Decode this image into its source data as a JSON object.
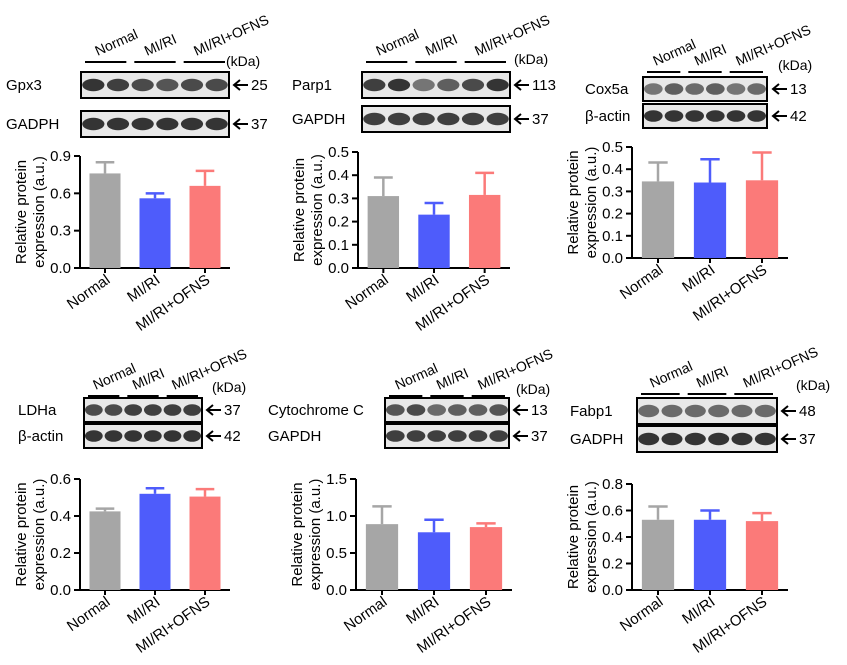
{
  "groups": [
    "Normal",
    "MI/RI",
    "MI/RI+OFNS"
  ],
  "kda_label": "(kDa)",
  "ylabel_line1": "Relative protein",
  "ylabel_line2": "expression (a.u.)",
  "colors": {
    "Normal": "#a6a6a6",
    "MI/RI": "#4e5cfb",
    "MI/RI+OFNS": "#fb7a79"
  },
  "panels": [
    {
      "id": "gpx3",
      "blots": [
        {
          "label": "Gpx3",
          "kda": "25",
          "band_intensity": [
            0.85,
            0.8,
            0.75,
            0.7,
            0.75,
            0.75
          ]
        },
        {
          "label": "GADPH",
          "kda": "37",
          "band_intensity": [
            0.85,
            0.85,
            0.85,
            0.85,
            0.85,
            0.85
          ]
        }
      ],
      "chart_data": {
        "type": "bar",
        "categories": [
          "Normal",
          "MI/RI",
          "MI/RI+OFNS"
        ],
        "values": [
          0.76,
          0.56,
          0.66
        ],
        "errors": [
          0.09,
          0.04,
          0.12
        ],
        "ylim": [
          0,
          0.9
        ],
        "yticks": [
          0.0,
          0.3,
          0.6,
          0.9
        ],
        "tick_labels": [
          "0.0",
          "0.3",
          "0.6",
          "0.9"
        ],
        "ylabel": "Relative protein expression (a.u.)"
      }
    },
    {
      "id": "parp1",
      "blots": [
        {
          "label": "Parp1",
          "kda": "113",
          "band_intensity": [
            0.8,
            0.85,
            0.55,
            0.65,
            0.75,
            0.85
          ]
        },
        {
          "label": "GAPDH",
          "kda": "37",
          "band_intensity": [
            0.8,
            0.8,
            0.8,
            0.8,
            0.8,
            0.8
          ]
        }
      ],
      "chart_data": {
        "type": "bar",
        "categories": [
          "Normal",
          "MI/RI",
          "MI/RI+OFNS"
        ],
        "values": [
          0.31,
          0.23,
          0.315
        ],
        "errors": [
          0.08,
          0.05,
          0.095
        ],
        "ylim": [
          0,
          0.5
        ],
        "yticks": [
          0.0,
          0.1,
          0.2,
          0.3,
          0.4,
          0.5
        ],
        "tick_labels": [
          "0.0",
          "0.1",
          "0.2",
          "0.3",
          "0.4",
          "0.5"
        ],
        "ylabel": "Relative protein expression (a.u.)"
      }
    },
    {
      "id": "cox5a",
      "blots": [
        {
          "label": "Cox5a",
          "kda": "13",
          "band_intensity": [
            0.55,
            0.65,
            0.6,
            0.65,
            0.55,
            0.6
          ]
        },
        {
          "label": "β-actin",
          "kda": "42",
          "band_intensity": [
            0.85,
            0.85,
            0.85,
            0.85,
            0.85,
            0.85
          ]
        }
      ],
      "chart_data": {
        "type": "bar",
        "categories": [
          "Normal",
          "MI/RI",
          "MI/RI+OFNS"
        ],
        "values": [
          0.345,
          0.34,
          0.35
        ],
        "errors": [
          0.085,
          0.105,
          0.125
        ],
        "ylim": [
          0,
          0.5
        ],
        "yticks": [
          0.0,
          0.1,
          0.2,
          0.3,
          0.4,
          0.5
        ],
        "tick_labels": [
          "0.0",
          "0.1",
          "0.2",
          "0.3",
          "0.4",
          "0.5"
        ],
        "ylabel": "Relative protein expression (a.u.)"
      }
    },
    {
      "id": "ldha",
      "blots": [
        {
          "label": "LDHa",
          "kda": "37",
          "band_intensity": [
            0.75,
            0.75,
            0.8,
            0.8,
            0.8,
            0.8
          ]
        },
        {
          "label": "β-actin",
          "kda": "42",
          "band_intensity": [
            0.85,
            0.85,
            0.85,
            0.85,
            0.85,
            0.85
          ]
        }
      ],
      "chart_data": {
        "type": "bar",
        "categories": [
          "Normal",
          "MI/RI",
          "MI/RI+OFNS"
        ],
        "values": [
          0.425,
          0.52,
          0.505
        ],
        "errors": [
          0.015,
          0.03,
          0.04
        ],
        "ylim": [
          0,
          0.6
        ],
        "yticks": [
          0.0,
          0.2,
          0.4,
          0.6
        ],
        "tick_labels": [
          "0.0",
          "0.2",
          "0.4",
          "0.6"
        ],
        "ylabel": "Relative protein expression (a.u.)"
      }
    },
    {
      "id": "cytc",
      "blots": [
        {
          "label": "Cytochrome C",
          "kda": "13",
          "band_intensity": [
            0.7,
            0.75,
            0.6,
            0.65,
            0.65,
            0.7
          ]
        },
        {
          "label": "GAPDH",
          "kda": "37",
          "band_intensity": [
            0.8,
            0.8,
            0.8,
            0.8,
            0.8,
            0.8
          ]
        }
      ],
      "chart_data": {
        "type": "bar",
        "categories": [
          "Normal",
          "MI/RI",
          "MI/RI+OFNS"
        ],
        "values": [
          0.89,
          0.78,
          0.85
        ],
        "errors": [
          0.24,
          0.17,
          0.05
        ],
        "ylim": [
          0,
          1.5
        ],
        "yticks": [
          0.0,
          0.5,
          1.0,
          1.5
        ],
        "tick_labels": [
          "0.0",
          "0.5",
          "1.0",
          "1.5"
        ],
        "ylabel": "Relative protein expression (a.u.)"
      }
    },
    {
      "id": "fabp1",
      "blots": [
        {
          "label": "Fabp1",
          "kda": "48",
          "band_intensity": [
            0.6,
            0.6,
            0.6,
            0.6,
            0.6,
            0.6
          ]
        },
        {
          "label": "GADPH",
          "kda": "37",
          "band_intensity": [
            0.85,
            0.85,
            0.85,
            0.85,
            0.85,
            0.85
          ]
        }
      ],
      "chart_data": {
        "type": "bar",
        "categories": [
          "Normal",
          "MI/RI",
          "MI/RI+OFNS"
        ],
        "values": [
          0.53,
          0.53,
          0.52
        ],
        "errors": [
          0.1,
          0.07,
          0.06
        ],
        "ylim": [
          0,
          0.8
        ],
        "yticks": [
          0.0,
          0.2,
          0.4,
          0.6,
          0.8
        ],
        "tick_labels": [
          "0.0",
          "0.2",
          "0.4",
          "0.6",
          "0.8"
        ],
        "ylabel": "Relative protein expression (a.u.)"
      }
    }
  ]
}
